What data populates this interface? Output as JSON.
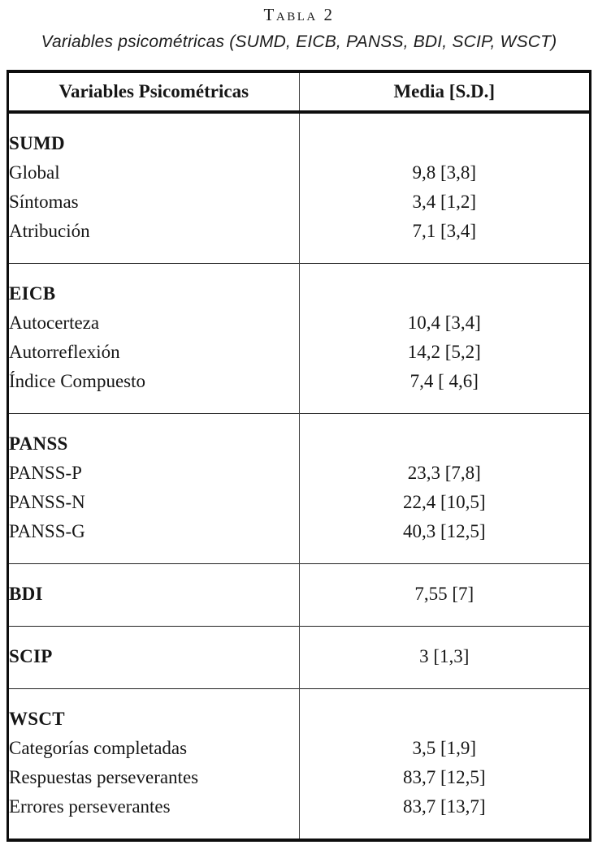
{
  "page": {
    "title": "Tabla 2",
    "subtitle": "Variables psicométricas (SUMD, EICB, PANSS, BDI, SCIP, WSCT)"
  },
  "table": {
    "headers": {
      "variables": "Variables Psicométricas",
      "media": "Media [S.D.]"
    },
    "sections": [
      {
        "group": "SUMD",
        "rows": [
          {
            "label": "Global",
            "value": "9,8 [3,8]"
          },
          {
            "label": "Síntomas",
            "value": "3,4 [1,2]"
          },
          {
            "label": "Atribución",
            "value": "7,1 [3,4]"
          }
        ]
      },
      {
        "group": "EICB",
        "rows": [
          {
            "label": "Autocerteza",
            "value": "10,4 [3,4]"
          },
          {
            "label": "Autorreflexión",
            "value": "14,2 [5,2]"
          },
          {
            "label": "Índice Compuesto",
            "value": "7,4 [ 4,6]"
          }
        ]
      },
      {
        "group": "PANSS",
        "rows": [
          {
            "label": "PANSS-P",
            "value": "23,3 [7,8]"
          },
          {
            "label": "PANSS-N",
            "value": "22,4 [10,5]"
          },
          {
            "label": "PANSS-G",
            "value": "40,3 [12,5]"
          }
        ]
      },
      {
        "group": "BDI",
        "value": "7,55 [7]",
        "rows": []
      },
      {
        "group": "SCIP",
        "value": "3 [1,3]",
        "rows": []
      },
      {
        "group": "WSCT",
        "rows": [
          {
            "label": "Categorías completadas",
            "value": "3,5 [1,9]"
          },
          {
            "label": "Respuestas perseverantes",
            "value": "83,7 [12,5]"
          },
          {
            "label": "Errores perseverantes",
            "value": "83,7 [13,7]"
          }
        ]
      }
    ]
  }
}
